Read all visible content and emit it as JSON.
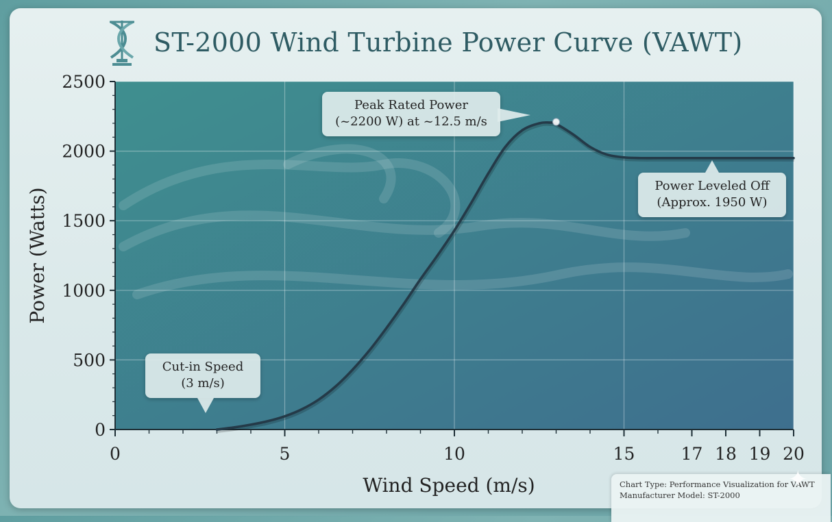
{
  "title": "ST-2000 Wind Turbine Power Curve (VAWT)",
  "logo_icon": "vertical-axis-turbine-icon",
  "colors": {
    "plot_bg_start": "#3f8f8f",
    "plot_bg_end": "#3e6f8e",
    "curve": "#243a48",
    "title": "#2e5b63"
  },
  "chart_data": {
    "type": "line",
    "xlabel": "Wind Speed (m/s)",
    "ylabel": "Power (Watts)",
    "xlim": [
      0,
      20
    ],
    "ylim": [
      0,
      2500
    ],
    "x_ticks": [
      0,
      5,
      10,
      15,
      17,
      18,
      19,
      20
    ],
    "x_minor_ticks": [
      1,
      2,
      3,
      4,
      6,
      7,
      8,
      9,
      11,
      12,
      13,
      14,
      16
    ],
    "y_ticks": [
      0,
      500,
      1000,
      1500,
      2000,
      2500
    ],
    "grid": true,
    "series": [
      {
        "x": [
          3,
          3.5,
          4,
          4.5,
          5,
          5.5,
          6,
          6.5,
          7,
          7.5,
          8,
          8.5,
          9,
          9.5,
          10,
          10.5,
          11,
          11.5,
          12,
          12.5,
          12.8,
          13,
          13.5,
          14,
          14.5,
          15,
          15.5,
          16,
          17,
          18,
          19,
          20
        ],
        "y": [
          0,
          15,
          35,
          60,
          95,
          145,
          215,
          310,
          430,
          570,
          730,
          900,
          1080,
          1250,
          1430,
          1630,
          1840,
          2030,
          2150,
          2200,
          2205,
          2195,
          2120,
          2030,
          1975,
          1955,
          1950,
          1950,
          1950,
          1950,
          1950,
          1950
        ]
      }
    ],
    "peak_point": {
      "x": 13,
      "y": 2210
    },
    "annotations": [
      {
        "lines": [
          "Cut-in Speed",
          "(3 m/s)"
        ],
        "x": 3,
        "y": 0
      },
      {
        "lines": [
          "Peak Rated Power",
          "(~2200 W) at ~12.5 m/s"
        ],
        "x": 13,
        "y": 2210
      },
      {
        "lines": [
          "Power Leveled Off",
          "(Approx. 1950 W)"
        ],
        "x": 17.5,
        "y": 1950
      }
    ]
  },
  "footnote": {
    "line1": "Chart Type: Performance Visualization for VAWT",
    "line2": "Manufacturer Model: ST-2000"
  }
}
